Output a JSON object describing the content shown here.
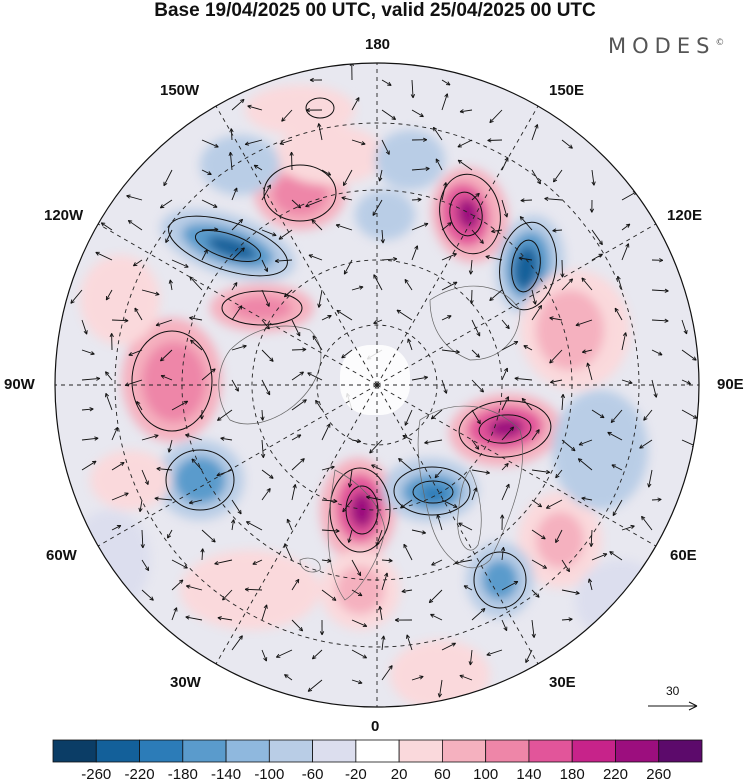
{
  "title": "Base 19/04/2025 00 UTC, valid 25/04/2025 00 UTC",
  "brand": "MODES",
  "brand_mark": "©",
  "projection": "north-polar-stereographic",
  "longitude_labels": {
    "top": "180",
    "top_right": "150E",
    "right_upper": "120E",
    "right": "90E",
    "right_lower": "60E",
    "bottom_right": "30E",
    "bottom": "0",
    "bottom_left": "30W",
    "left_lower": "60W",
    "left": "90W",
    "left_upper": "120W",
    "top_left": "150W"
  },
  "reference_vector": {
    "value": "30"
  },
  "colorbar": {
    "ticks": [
      "-260",
      "-220",
      "-180",
      "-140",
      "-100",
      "-60",
      "-20",
      "20",
      "60",
      "100",
      "140",
      "180",
      "220",
      "260"
    ],
    "colors": [
      "#0b3d66",
      "#13609a",
      "#2c7cb8",
      "#5a9bcc",
      "#8fb8de",
      "#b9cde6",
      "#dcdeee",
      "#ffffff",
      "#fad9dc",
      "#f5b1bf",
      "#ee86a8",
      "#e2559a",
      "#c7238a",
      "#9c0e7e",
      "#5c0a6b"
    ]
  },
  "chart_data": {
    "type": "heatmap",
    "field": "anomaly",
    "levels": [
      -260,
      -220,
      -180,
      -140,
      -100,
      -60,
      -20,
      20,
      60,
      100,
      140,
      180,
      220,
      260
    ],
    "extend": "both"
  }
}
